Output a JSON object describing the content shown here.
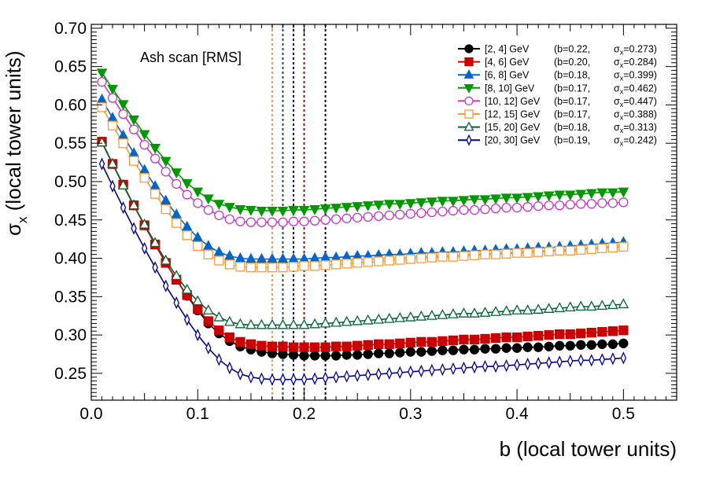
{
  "chart_data": {
    "type": "line",
    "title": "",
    "annotation": "Ash scan  [RMS]",
    "xlabel": "b  (local tower units)",
    "ylabel_main": "σ",
    "ylabel_sub": "x",
    "ylabel_rest": "  (local tower units)",
    "xlim": [
      0,
      0.55
    ],
    "ylim": [
      0.215,
      0.705
    ],
    "x_ticks": [
      0,
      0.1,
      0.2,
      0.3,
      0.4,
      0.5
    ],
    "x_tick_labels": [
      "0.0",
      "0.1",
      "0.2",
      "0.3",
      "0.4",
      "0.5"
    ],
    "y_ticks": [
      0.25,
      0.3,
      0.35,
      0.4,
      0.45,
      0.5,
      0.55,
      0.6,
      0.65,
      0.7
    ],
    "y_tick_labels": [
      "0.25",
      "0.30",
      "0.35",
      "0.40",
      "0.45",
      "0.50",
      "0.55",
      "0.60",
      "0.65",
      "0.70"
    ],
    "grid": false,
    "legend_position": "top-right",
    "x": [
      0.01,
      0.02,
      0.03,
      0.04,
      0.05,
      0.06,
      0.07,
      0.08,
      0.09,
      0.1,
      0.11,
      0.12,
      0.13,
      0.14,
      0.15,
      0.16,
      0.17,
      0.18,
      0.19,
      0.2,
      0.21,
      0.22,
      0.23,
      0.24,
      0.25,
      0.26,
      0.27,
      0.28,
      0.29,
      0.3,
      0.31,
      0.32,
      0.33,
      0.34,
      0.35,
      0.36,
      0.37,
      0.38,
      0.39,
      0.4,
      0.41,
      0.42,
      0.43,
      0.44,
      0.45,
      0.46,
      0.47,
      0.48,
      0.49,
      0.5
    ],
    "series": [
      {
        "range": "[2, 4] GeV",
        "b_label": "(b=0.22,",
        "sigma_label": "=0.273)",
        "color": "#000000",
        "marker": "circle",
        "filled": true,
        "b_best": 0.22,
        "values": [
          0.552,
          0.523,
          0.496,
          0.469,
          0.443,
          0.418,
          0.394,
          0.372,
          0.351,
          0.332,
          0.315,
          0.302,
          0.292,
          0.285,
          0.281,
          0.278,
          0.276,
          0.275,
          0.274,
          0.273,
          0.273,
          0.273,
          0.273,
          0.274,
          0.274,
          0.275,
          0.276,
          0.276,
          0.277,
          0.278,
          0.278,
          0.279,
          0.28,
          0.28,
          0.281,
          0.281,
          0.282,
          0.282,
          0.283,
          0.283,
          0.284,
          0.284,
          0.285,
          0.286,
          0.286,
          0.287,
          0.287,
          0.288,
          0.288,
          0.289
        ]
      },
      {
        "range": "[4, 6] GeV",
        "b_label": "(b=0.20,",
        "sigma_label": "=0.284)",
        "color": "#cc0000",
        "marker": "square",
        "filled": true,
        "b_best": 0.2,
        "values": [
          0.552,
          0.523,
          0.496,
          0.469,
          0.443,
          0.418,
          0.394,
          0.372,
          0.352,
          0.334,
          0.318,
          0.306,
          0.297,
          0.291,
          0.288,
          0.286,
          0.285,
          0.285,
          0.284,
          0.284,
          0.284,
          0.284,
          0.285,
          0.285,
          0.286,
          0.287,
          0.288,
          0.288,
          0.289,
          0.29,
          0.291,
          0.291,
          0.292,
          0.293,
          0.294,
          0.294,
          0.295,
          0.296,
          0.297,
          0.297,
          0.298,
          0.299,
          0.3,
          0.301,
          0.301,
          0.302,
          0.303,
          0.304,
          0.305,
          0.306
        ]
      },
      {
        "range": "[6, 8] GeV",
        "b_label": "(b=0.18,",
        "sigma_label": "=0.399)",
        "color": "#0066cc",
        "marker": "triangle-up",
        "filled": true,
        "b_best": 0.18,
        "values": [
          0.607,
          0.583,
          0.56,
          0.537,
          0.515,
          0.494,
          0.475,
          0.457,
          0.441,
          0.427,
          0.416,
          0.408,
          0.403,
          0.4,
          0.399,
          0.399,
          0.399,
          0.399,
          0.399,
          0.399,
          0.4,
          0.401,
          0.401,
          0.402,
          0.403,
          0.403,
          0.404,
          0.405,
          0.405,
          0.406,
          0.407,
          0.407,
          0.408,
          0.408,
          0.409,
          0.41,
          0.41,
          0.411,
          0.412,
          0.412,
          0.413,
          0.414,
          0.414,
          0.415,
          0.416,
          0.417,
          0.418,
          0.419,
          0.42,
          0.421
        ]
      },
      {
        "range": "[8, 10] GeV",
        "b_label": "(b=0.17,",
        "sigma_label": "=0.462)",
        "color": "#009900",
        "marker": "triangle-down",
        "filled": true,
        "b_best": 0.17,
        "values": [
          0.642,
          0.621,
          0.601,
          0.581,
          0.562,
          0.544,
          0.527,
          0.512,
          0.498,
          0.487,
          0.478,
          0.471,
          0.467,
          0.464,
          0.463,
          0.462,
          0.462,
          0.462,
          0.463,
          0.463,
          0.464,
          0.465,
          0.466,
          0.467,
          0.468,
          0.469,
          0.47,
          0.471,
          0.471,
          0.472,
          0.473,
          0.474,
          0.475,
          0.475,
          0.476,
          0.477,
          0.477,
          0.478,
          0.479,
          0.479,
          0.48,
          0.481,
          0.482,
          0.483,
          0.483,
          0.484,
          0.485,
          0.486,
          0.486,
          0.487
        ]
      },
      {
        "range": "[10, 12] GeV",
        "b_label": "(b=0.17,",
        "sigma_label": "=0.447)",
        "color": "#cc33cc",
        "marker": "circle",
        "filled": false,
        "b_best": 0.17,
        "values": [
          0.63,
          0.609,
          0.588,
          0.568,
          0.548,
          0.53,
          0.513,
          0.497,
          0.483,
          0.472,
          0.463,
          0.456,
          0.451,
          0.448,
          0.447,
          0.447,
          0.447,
          0.447,
          0.448,
          0.448,
          0.449,
          0.45,
          0.451,
          0.452,
          0.453,
          0.454,
          0.455,
          0.456,
          0.457,
          0.458,
          0.459,
          0.46,
          0.461,
          0.462,
          0.463,
          0.463,
          0.464,
          0.465,
          0.466,
          0.466,
          0.467,
          0.468,
          0.469,
          0.469,
          0.47,
          0.471,
          0.471,
          0.472,
          0.472,
          0.473
        ]
      },
      {
        "range": "[12, 15] GeV",
        "b_label": "(b=0.17,",
        "sigma_label": "=0.388)",
        "color": "#ff9933",
        "marker": "square",
        "filled": false,
        "b_best": 0.17,
        "values": [
          0.597,
          0.573,
          0.55,
          0.527,
          0.505,
          0.484,
          0.464,
          0.446,
          0.43,
          0.416,
          0.405,
          0.397,
          0.392,
          0.389,
          0.388,
          0.388,
          0.388,
          0.388,
          0.389,
          0.39,
          0.39,
          0.391,
          0.392,
          0.393,
          0.394,
          0.395,
          0.396,
          0.397,
          0.398,
          0.399,
          0.4,
          0.401,
          0.402,
          0.402,
          0.403,
          0.404,
          0.405,
          0.405,
          0.406,
          0.407,
          0.407,
          0.408,
          0.409,
          0.41,
          0.41,
          0.411,
          0.412,
          0.413,
          0.414,
          0.415
        ]
      },
      {
        "range": "[15, 20] GeV",
        "b_label": "(b=0.18,",
        "sigma_label": "=0.313)",
        "color": "#006633",
        "marker": "triangle-up",
        "filled": false,
        "b_best": 0.18,
        "values": [
          0.551,
          0.523,
          0.495,
          0.469,
          0.444,
          0.42,
          0.397,
          0.377,
          0.359,
          0.344,
          0.332,
          0.323,
          0.317,
          0.314,
          0.313,
          0.313,
          0.313,
          0.313,
          0.313,
          0.313,
          0.314,
          0.315,
          0.316,
          0.317,
          0.318,
          0.319,
          0.32,
          0.321,
          0.322,
          0.323,
          0.324,
          0.325,
          0.326,
          0.327,
          0.328,
          0.328,
          0.329,
          0.33,
          0.331,
          0.332,
          0.332,
          0.333,
          0.334,
          0.335,
          0.336,
          0.337,
          0.337,
          0.338,
          0.339,
          0.34
        ]
      },
      {
        "range": "[20, 30] GeV",
        "b_label": "(b=0.19,",
        "sigma_label": "=0.242)",
        "color": "#000099",
        "marker": "diamond",
        "filled": false,
        "b_best": 0.19,
        "values": [
          0.523,
          0.494,
          0.466,
          0.439,
          0.413,
          0.388,
          0.364,
          0.342,
          0.32,
          0.3,
          0.283,
          0.268,
          0.257,
          0.249,
          0.245,
          0.243,
          0.242,
          0.242,
          0.242,
          0.242,
          0.243,
          0.244,
          0.245,
          0.246,
          0.247,
          0.248,
          0.249,
          0.25,
          0.251,
          0.252,
          0.253,
          0.254,
          0.255,
          0.256,
          0.257,
          0.258,
          0.259,
          0.259,
          0.26,
          0.261,
          0.262,
          0.263,
          0.264,
          0.265,
          0.266,
          0.267,
          0.267,
          0.268,
          0.269,
          0.27
        ]
      }
    ],
    "vlines": [
      {
        "x": 0.17,
        "color": "#ff9933"
      },
      {
        "x": 0.18,
        "color": "#006633"
      },
      {
        "x": 0.19,
        "color": "#000099"
      },
      {
        "x": 0.2,
        "color": "#cc0000"
      },
      {
        "x": 0.22,
        "color": "#000000"
      }
    ]
  }
}
